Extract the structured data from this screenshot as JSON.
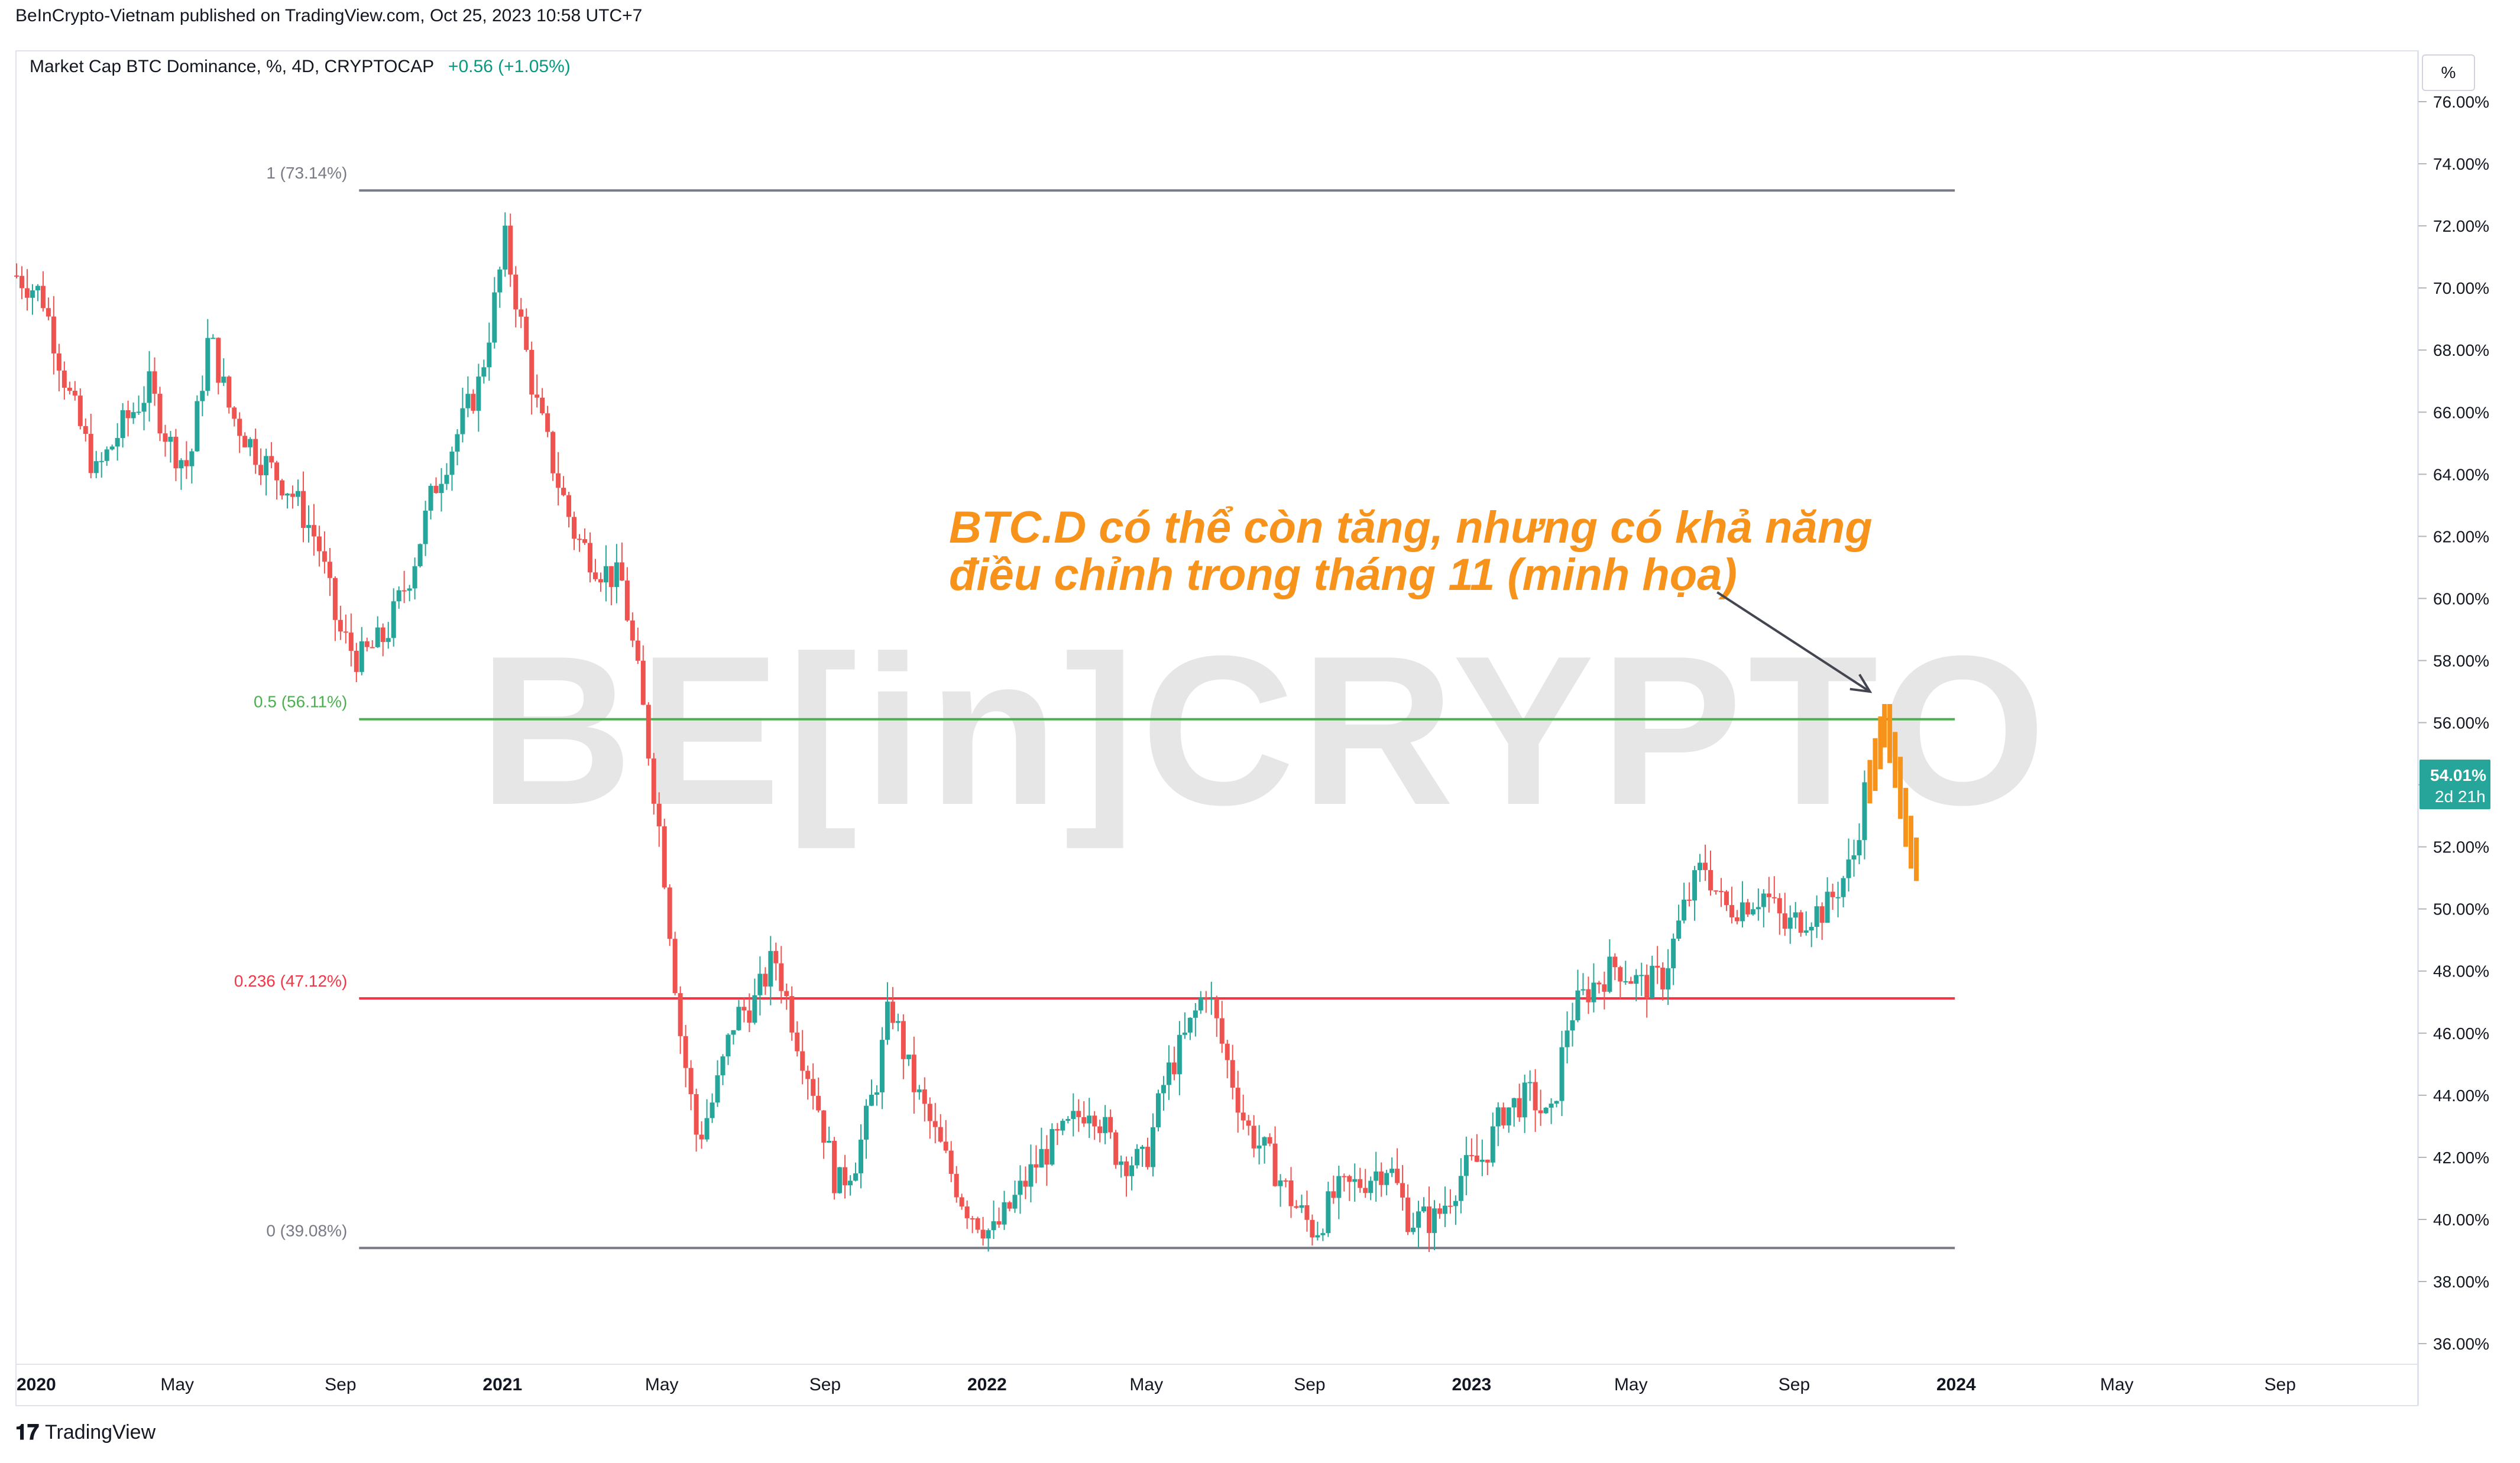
{
  "header": {
    "published_line": "BeInCrypto-Vietnam published on TradingView.com, Oct 25, 2023 10:58 UTC+7"
  },
  "legend": {
    "symbol_line": "Market Cap BTC Dominance, %, 4D, CRYPTOCAP",
    "change": "+0.56 (+1.05%)"
  },
  "price_scale": {
    "unit_label": "%",
    "current_value": "54.01%",
    "countdown": "2d 21h"
  },
  "watermark": "BE[in]CRYPTO",
  "annotation": {
    "line1": "BTC.D có thể còn tăng, nhưng có khả năng",
    "line2": "điều chỉnh trong tháng 11 (minh họa)"
  },
  "footer": {
    "brand": "TradingView"
  },
  "colors": {
    "up": "#26a69a",
    "down": "#ef5350",
    "projection": "#f7931a",
    "fib_1": "#787b86",
    "fib_05": "#4caf50",
    "fib_0236": "#f23645",
    "fib_0": "#787b86",
    "current_badge": "#26a69a"
  },
  "chart_data": {
    "type": "candlestick",
    "title": "Market Cap BTC Dominance, %, 4D, CRYPTOCAP",
    "ylim": [
      35,
      77
    ],
    "yticks": [
      36,
      38,
      40,
      42,
      44,
      46,
      48,
      50,
      52,
      54,
      56,
      58,
      60,
      62,
      64,
      66,
      68,
      70,
      72,
      74,
      76
    ],
    "ytick_labels": [
      "36.00%",
      "38.00%",
      "40.00%",
      "42.00%",
      "44.00%",
      "46.00%",
      "48.00%",
      "50.00%",
      "52.00%",
      "54.00%",
      "56.00%",
      "58.00%",
      "60.00%",
      "62.00%",
      "64.00%",
      "66.00%",
      "68.00%",
      "70.00%",
      "72.00%",
      "74.00%",
      "76.00%"
    ],
    "xlim": [
      "2020-01-01",
      "2024-12-15"
    ],
    "xticks": [
      {
        "date": "2020-01-01",
        "label": "2020"
      },
      {
        "date": "2020-05-01",
        "label": "May"
      },
      {
        "date": "2020-09-01",
        "label": "Sep"
      },
      {
        "date": "2021-01-01",
        "label": "2021"
      },
      {
        "date": "2021-05-01",
        "label": "May"
      },
      {
        "date": "2021-09-01",
        "label": "Sep"
      },
      {
        "date": "2022-01-01",
        "label": "2022"
      },
      {
        "date": "2022-05-01",
        "label": "May"
      },
      {
        "date": "2022-09-01",
        "label": "Sep"
      },
      {
        "date": "2023-01-01",
        "label": "2023"
      },
      {
        "date": "2023-05-01",
        "label": "May"
      },
      {
        "date": "2023-09-01",
        "label": "Sep"
      },
      {
        "date": "2024-01-01",
        "label": "2024"
      },
      {
        "date": "2024-05-01",
        "label": "May"
      },
      {
        "date": "2024-09-01",
        "label": "Sep"
      }
    ],
    "fib_levels": [
      {
        "label": "1 (73.14%)",
        "value": 73.14,
        "from": "2020-09-15",
        "to": "2023-12-31",
        "color_key": "fib_1"
      },
      {
        "label": "0.5 (56.11%)",
        "value": 56.11,
        "from": "2020-09-15",
        "to": "2023-12-31",
        "color_key": "fib_05"
      },
      {
        "label": "0.236 (47.12%)",
        "value": 47.12,
        "from": "2020-09-15",
        "to": "2023-12-31",
        "color_key": "fib_0236"
      },
      {
        "label": "0 (39.08%)",
        "value": 39.08,
        "from": "2020-09-15",
        "to": "2023-12-31",
        "color_key": "fib_0"
      }
    ],
    "price_path": [
      [
        "2020-01-01",
        70.4
      ],
      [
        "2020-01-20",
        69.8
      ],
      [
        "2020-02-10",
        66.5
      ],
      [
        "2020-03-01",
        64.0
      ],
      [
        "2020-03-20",
        65.5
      ],
      [
        "2020-04-10",
        66.8
      ],
      [
        "2020-04-25",
        65.0
      ],
      [
        "2020-05-10",
        64.2
      ],
      [
        "2020-05-25",
        68.5
      ],
      [
        "2020-06-10",
        66.0
      ],
      [
        "2020-07-01",
        64.6
      ],
      [
        "2020-07-25",
        63.5
      ],
      [
        "2020-08-15",
        61.8
      ],
      [
        "2020-08-30",
        59.0
      ],
      [
        "2020-09-15",
        58.0
      ],
      [
        "2020-10-05",
        58.8
      ],
      [
        "2020-10-25",
        61.0
      ],
      [
        "2020-11-10",
        63.5
      ],
      [
        "2020-11-30",
        65.5
      ],
      [
        "2020-12-15",
        67.0
      ],
      [
        "2020-12-28",
        70.0
      ],
      [
        "2021-01-03",
        71.5
      ],
      [
        "2021-01-12",
        69.5
      ],
      [
        "2021-01-25",
        66.5
      ],
      [
        "2021-02-10",
        64.0
      ],
      [
        "2021-02-25",
        62.0
      ],
      [
        "2021-03-15",
        61.0
      ],
      [
        "2021-04-01",
        60.5
      ],
      [
        "2021-04-15",
        57.0
      ],
      [
        "2021-05-01",
        52.0
      ],
      [
        "2021-05-15",
        46.0
      ],
      [
        "2021-05-28",
        42.5
      ],
      [
        "2021-06-10",
        44.0
      ],
      [
        "2021-06-25",
        46.5
      ],
      [
        "2021-07-10",
        47.0
      ],
      [
        "2021-07-25",
        48.5
      ],
      [
        "2021-08-10",
        46.0
      ],
      [
        "2021-08-25",
        44.0
      ],
      [
        "2021-09-10",
        41.0
      ],
      [
        "2021-09-25",
        42.0
      ],
      [
        "2021-10-10",
        44.5
      ],
      [
        "2021-10-20",
        47.0
      ],
      [
        "2021-11-05",
        44.5
      ],
      [
        "2021-11-25",
        42.5
      ],
      [
        "2021-12-15",
        40.5
      ],
      [
        "2022-01-05",
        39.5
      ],
      [
        "2022-01-20",
        40.5
      ],
      [
        "2022-02-10",
        42.0
      ],
      [
        "2022-03-01",
        42.8
      ],
      [
        "2022-03-20",
        43.8
      ],
      [
        "2022-04-10",
        42.0
      ],
      [
        "2022-04-30",
        41.8
      ],
      [
        "2022-05-15",
        44.5
      ],
      [
        "2022-06-01",
        46.0
      ],
      [
        "2022-06-15",
        47.5
      ],
      [
        "2022-06-28",
        45.5
      ],
      [
        "2022-07-15",
        43.0
      ],
      [
        "2022-08-01",
        42.0
      ],
      [
        "2022-08-20",
        40.5
      ],
      [
        "2022-09-05",
        39.6
      ],
      [
        "2022-09-20",
        40.8
      ],
      [
        "2022-10-10",
        41.2
      ],
      [
        "2022-10-30",
        41.8
      ],
      [
        "2022-11-15",
        40.0
      ],
      [
        "2022-12-05",
        40.0
      ],
      [
        "2022-12-25",
        41.5
      ],
      [
        "2023-01-10",
        42.0
      ],
      [
        "2023-01-25",
        43.5
      ],
      [
        "2023-02-15",
        44.0
      ],
      [
        "2023-03-01",
        43.0
      ],
      [
        "2023-03-15",
        46.5
      ],
      [
        "2023-04-01",
        47.5
      ],
      [
        "2023-04-20",
        48.2
      ],
      [
        "2023-05-10",
        47.5
      ],
      [
        "2023-05-25",
        47.8
      ],
      [
        "2023-06-10",
        50.0
      ],
      [
        "2023-06-25",
        51.5
      ],
      [
        "2023-07-10",
        50.0
      ],
      [
        "2023-07-25",
        50.2
      ],
      [
        "2023-08-10",
        50.5
      ],
      [
        "2023-08-25",
        49.4
      ],
      [
        "2023-09-10",
        49.8
      ],
      [
        "2023-09-25",
        50.0
      ],
      [
        "2023-10-05",
        50.8
      ],
      [
        "2023-10-15",
        51.5
      ],
      [
        "2023-10-25",
        54.0
      ]
    ],
    "projection_path": [
      [
        "2023-10-28",
        54.3
      ],
      [
        "2023-11-01",
        55.0
      ],
      [
        "2023-11-05",
        55.7
      ],
      [
        "2023-11-08",
        56.1
      ],
      [
        "2023-11-12",
        55.2
      ],
      [
        "2023-11-16",
        54.4
      ],
      [
        "2023-11-20",
        53.4
      ],
      [
        "2023-11-24",
        52.5
      ],
      [
        "2023-11-28",
        51.8
      ],
      [
        "2023-12-02",
        51.4
      ]
    ],
    "current_value": 54.01,
    "arrow": {
      "from": [
        "2023-07-05",
        60.2
      ],
      "to": [
        "2023-10-28",
        57.0
      ]
    }
  }
}
